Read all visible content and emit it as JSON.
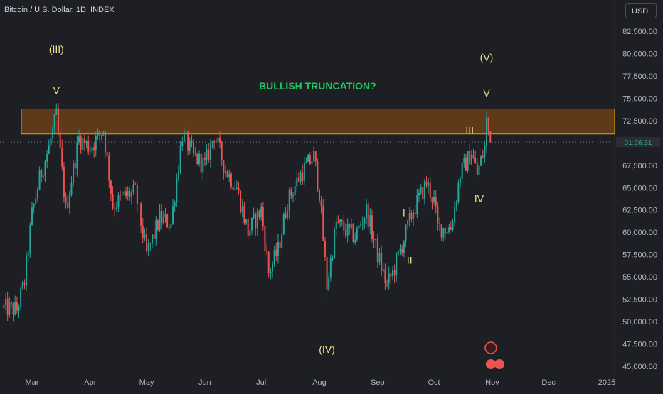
{
  "header": {
    "title": "Bitcoin / U.S. Dollar, 1D, INDEX",
    "currency": "USD"
  },
  "colors": {
    "background": "#1e1f24",
    "up": "#26a69a",
    "down": "#ef5350",
    "box_fill": "#6b3f16",
    "box_border": "#e0a80e",
    "wave_label": "#f7e08a",
    "annotation": "#22c55e",
    "axis_text": "#b2b5be"
  },
  "chart_data": {
    "type": "candlestick",
    "title": "Bitcoin / U.S. Dollar, 1D, INDEX",
    "y_unit": "USD",
    "ylim": [
      44500,
      84500
    ],
    "xlim": [
      "2024-02-15",
      "2025-01-10"
    ],
    "y_ticks": [
      "45,000.00",
      "47,500.00",
      "50,000.00",
      "52,500.00",
      "55,000.00",
      "57,500.00",
      "60,000.00",
      "62,500.00",
      "65,000.00",
      "67,500.00",
      "70,000.00",
      "72,500.00",
      "75,000.00",
      "77,500.00",
      "80,000.00",
      "82,500.00"
    ],
    "y_tick_values": [
      45000,
      47500,
      50000,
      52500,
      55000,
      57500,
      60000,
      62500,
      65000,
      67500,
      70000,
      72500,
      75000,
      77500,
      80000,
      82500
    ],
    "x_ticks": [
      {
        "label": "Mar",
        "date": "2024-03-01"
      },
      {
        "label": "Apr",
        "date": "2024-04-01"
      },
      {
        "label": "May",
        "date": "2024-05-01"
      },
      {
        "label": "Jun",
        "date": "2024-06-01"
      },
      {
        "label": "Jul",
        "date": "2024-07-01"
      },
      {
        "label": "Aug",
        "date": "2024-08-01"
      },
      {
        "label": "Sep",
        "date": "2024-09-01"
      },
      {
        "label": "Oct",
        "date": "2024-10-01"
      },
      {
        "label": "Nov",
        "date": "2024-11-01"
      },
      {
        "label": "Dec",
        "date": "2024-12-01"
      },
      {
        "label": "2025",
        "date": "2025-01-01"
      }
    ],
    "current_price": 70100,
    "current_price_label": "01:26:31",
    "resistance_zone": {
      "low": 71000,
      "high": 73800
    },
    "close_anchors": [
      {
        "date": "2024-02-15",
        "close": 51500
      },
      {
        "date": "2024-02-22",
        "close": 51300
      },
      {
        "date": "2024-02-26",
        "close": 54500
      },
      {
        "date": "2024-03-01",
        "close": 62000
      },
      {
        "date": "2024-03-05",
        "close": 66000
      },
      {
        "date": "2024-03-10",
        "close": 69500
      },
      {
        "date": "2024-03-14",
        "close": 73000
      },
      {
        "date": "2024-03-19",
        "close": 62500
      },
      {
        "date": "2024-03-26",
        "close": 70500
      },
      {
        "date": "2024-04-01",
        "close": 69500
      },
      {
        "date": "2024-04-08",
        "close": 71500
      },
      {
        "date": "2024-04-13",
        "close": 63000
      },
      {
        "date": "2024-04-19",
        "close": 64000
      },
      {
        "date": "2024-04-25",
        "close": 64500
      },
      {
        "date": "2024-05-01",
        "close": 57500
      },
      {
        "date": "2024-05-08",
        "close": 61500
      },
      {
        "date": "2024-05-14",
        "close": 61000
      },
      {
        "date": "2024-05-20",
        "close": 71000
      },
      {
        "date": "2024-05-26",
        "close": 68500
      },
      {
        "date": "2024-06-01",
        "close": 67500
      },
      {
        "date": "2024-06-06",
        "close": 71000
      },
      {
        "date": "2024-06-12",
        "close": 67000
      },
      {
        "date": "2024-06-18",
        "close": 65000
      },
      {
        "date": "2024-06-24",
        "close": 60000
      },
      {
        "date": "2024-07-01",
        "close": 62500
      },
      {
        "date": "2024-07-05",
        "close": 55500
      },
      {
        "date": "2024-07-10",
        "close": 58000
      },
      {
        "date": "2024-07-15",
        "close": 63500
      },
      {
        "date": "2024-07-22",
        "close": 66500
      },
      {
        "date": "2024-07-29",
        "close": 68500
      },
      {
        "date": "2024-08-01",
        "close": 64500
      },
      {
        "date": "2024-08-05",
        "close": 54000
      },
      {
        "date": "2024-08-10",
        "close": 61000
      },
      {
        "date": "2024-08-20",
        "close": 59500
      },
      {
        "date": "2024-08-26",
        "close": 62500
      },
      {
        "date": "2024-09-01",
        "close": 57500
      },
      {
        "date": "2024-09-06",
        "close": 54000
      },
      {
        "date": "2024-09-10",
        "close": 56000
      },
      {
        "date": "2024-09-20",
        "close": 62500
      },
      {
        "date": "2024-09-27",
        "close": 65500
      },
      {
        "date": "2024-10-01",
        "close": 63500
      },
      {
        "date": "2024-10-03",
        "close": 60500
      },
      {
        "date": "2024-10-10",
        "close": 60500
      },
      {
        "date": "2024-10-15",
        "close": 66500
      },
      {
        "date": "2024-10-21",
        "close": 69000
      },
      {
        "date": "2024-10-24",
        "close": 66500
      },
      {
        "date": "2024-10-28",
        "close": 69500
      },
      {
        "date": "2024-10-29",
        "close": 72500
      },
      {
        "date": "2024-10-31",
        "close": 70100
      }
    ],
    "wave_labels": [
      {
        "text": "(III)",
        "date": "2024-03-14",
        "price": 80100
      },
      {
        "text": "V",
        "date": "2024-03-14",
        "price": 75500
      },
      {
        "text": "(IV)",
        "date": "2024-08-05",
        "price": 46500
      },
      {
        "text": "I",
        "date": "2024-09-15",
        "price": 61800
      },
      {
        "text": "II",
        "date": "2024-09-18",
        "price": 56500
      },
      {
        "text": "III",
        "date": "2024-10-20",
        "price": 71000
      },
      {
        "text": "IV",
        "date": "2024-10-25",
        "price": 63400
      },
      {
        "text": "V",
        "date": "2024-10-29",
        "price": 75200
      },
      {
        "text": "(V)",
        "date": "2024-10-29",
        "price": 79200
      }
    ],
    "annotations": [
      {
        "text": "BULLISH TRUNCATION?",
        "date": "2024-07-31",
        "price": 76000
      }
    ]
  }
}
